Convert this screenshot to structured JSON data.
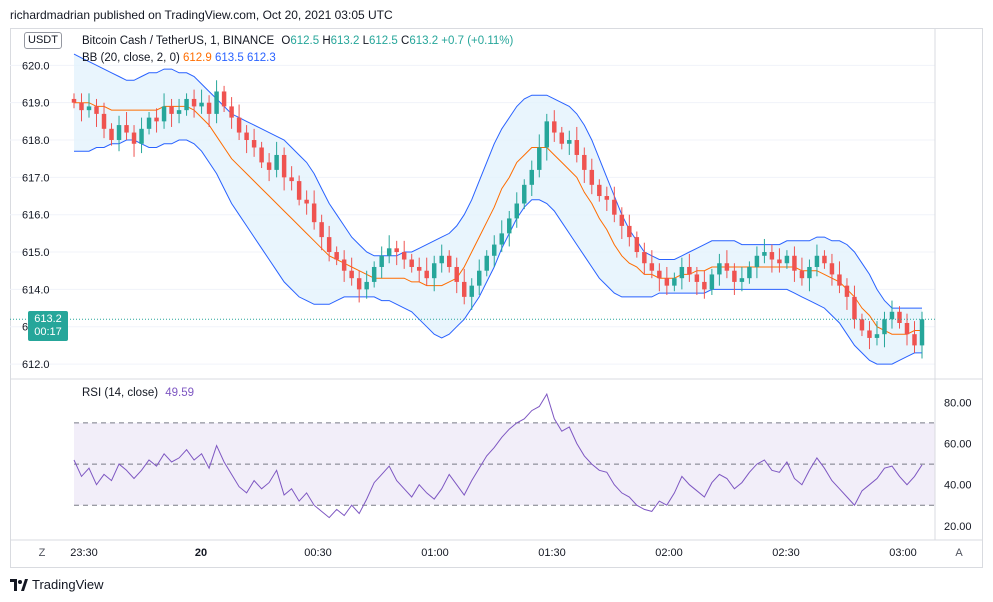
{
  "header": {
    "published_text": "richardmadrian published on TradingView.com, Oct 20, 2021 03:05 UTC"
  },
  "legend": {
    "symbol": "Bitcoin Cash / TetherUS, 1, BINANCE",
    "o_label": "O",
    "o_value": "612.5",
    "h_label": "H",
    "h_value": "613.2",
    "l_label": "L",
    "l_value": "612.5",
    "c_label": "C",
    "c_value": "613.2",
    "change": "+0.7 (+0.11%)",
    "bb_label": "BB (20, close, 2, 0)",
    "bb_basis": "612.9",
    "bb_upper": "613.5",
    "bb_lower": "612.3",
    "rsi_label": "RSI (14, close)",
    "rsi_value": "49.59"
  },
  "currency_pill": "USDT",
  "price_tag": {
    "price": "613.2",
    "countdown": "00:17"
  },
  "footer": {
    "brand": "TradingView",
    "timezone_button": "Z",
    "autoscale_button": "A"
  },
  "colors": {
    "up": "#26a69a",
    "down": "#ef5350",
    "bb_band": "#2962ff",
    "bb_basis": "#ff6d00",
    "bb_fill": "#e3f2fd",
    "rsi_line": "#7e57c2",
    "rsi_fill": "#ede7f6",
    "text_green": "#26a69a",
    "price_tag_bg": "#26a69a"
  },
  "chart_data": [
    {
      "type": "candlestick",
      "xlabel": "",
      "ylabel": "",
      "x_ticks": [
        "23:30",
        "20",
        "00:30",
        "01:00",
        "01:30",
        "02:00",
        "02:30",
        "03:00"
      ],
      "y_ticks": [
        612.0,
        613.0,
        614.0,
        615.0,
        616.0,
        617.0,
        618.0,
        619.0,
        620.0
      ],
      "ylim": [
        611.6,
        621.0
      ],
      "close_series": [
        619.0,
        618.8,
        618.9,
        618.7,
        618.3,
        618.0,
        618.4,
        618.2,
        617.9,
        618.3,
        618.6,
        618.5,
        618.9,
        618.7,
        618.8,
        619.1,
        618.9,
        619.0,
        618.7,
        619.3,
        618.9,
        618.6,
        618.2,
        618.0,
        617.8,
        617.4,
        617.2,
        617.6,
        617.0,
        616.9,
        616.4,
        616.3,
        615.8,
        615.4,
        615.0,
        614.8,
        614.5,
        614.3,
        614.0,
        614.2,
        614.6,
        614.9,
        615.1,
        615.0,
        614.8,
        614.6,
        614.5,
        614.3,
        614.7,
        614.9,
        614.6,
        614.2,
        613.8,
        614.1,
        614.5,
        614.9,
        615.2,
        615.5,
        615.9,
        616.3,
        616.8,
        617.2,
        617.8,
        618.5,
        618.2,
        617.9,
        618.0,
        617.6,
        617.2,
        616.8,
        616.5,
        616.4,
        616.0,
        615.7,
        615.4,
        615.0,
        614.7,
        614.5,
        614.3,
        614.1,
        614.3,
        614.6,
        614.4,
        614.2,
        614.0,
        614.4,
        614.7,
        614.5,
        614.2,
        614.3,
        614.6,
        614.9,
        615.0,
        614.8,
        614.7,
        614.9,
        614.5,
        614.3,
        614.6,
        614.9,
        614.7,
        614.4,
        614.1,
        613.8,
        613.2,
        612.9,
        612.7,
        612.8,
        613.2,
        613.4,
        613.1,
        612.8,
        612.5,
        613.2
      ],
      "bb_upper_series": [
        620.3,
        620.2,
        620.1,
        620.0,
        619.9,
        619.8,
        619.7,
        619.6,
        619.6,
        619.7,
        619.8,
        619.8,
        619.9,
        619.9,
        619.8,
        619.8,
        619.7,
        619.5,
        619.3,
        619.1,
        618.9,
        618.7,
        618.6,
        618.5,
        618.4,
        618.3,
        618.2,
        618.1,
        618.0,
        617.8,
        617.6,
        617.4,
        617.1,
        616.7,
        616.3,
        616.0,
        615.7,
        615.4,
        615.2,
        615.0,
        614.9,
        614.9,
        614.9,
        614.9,
        615.0,
        615.0,
        615.1,
        615.2,
        615.3,
        615.4,
        615.5,
        615.7,
        616.0,
        616.4,
        616.9,
        617.4,
        617.9,
        618.3,
        618.6,
        618.9,
        619.1,
        619.2,
        619.2,
        619.2,
        619.1,
        619.0,
        618.9,
        618.7,
        618.4,
        618.0,
        617.5,
        617.0,
        616.5,
        616.0,
        615.6,
        615.3,
        615.0,
        614.9,
        614.8,
        614.8,
        614.8,
        614.9,
        615.0,
        615.1,
        615.2,
        615.3,
        615.3,
        615.3,
        615.3,
        615.2,
        615.2,
        615.2,
        615.2,
        615.2,
        615.2,
        615.3,
        615.3,
        615.3,
        615.3,
        615.4,
        615.4,
        615.3,
        615.3,
        615.2,
        615.0,
        614.7,
        614.4,
        614.0,
        613.7,
        613.5,
        613.5,
        613.5,
        613.5,
        613.5
      ],
      "bb_lower_series": [
        617.7,
        617.7,
        617.7,
        617.8,
        617.8,
        617.9,
        617.9,
        618.0,
        618.0,
        617.9,
        617.8,
        617.8,
        617.9,
        617.9,
        618.0,
        618.0,
        617.9,
        617.7,
        617.4,
        617.1,
        616.7,
        616.3,
        616.0,
        615.7,
        615.4,
        615.1,
        614.8,
        614.5,
        614.2,
        614.0,
        613.8,
        613.7,
        613.6,
        613.6,
        613.6,
        613.7,
        613.8,
        613.8,
        613.8,
        613.8,
        613.8,
        613.7,
        613.7,
        613.6,
        613.5,
        613.4,
        613.2,
        613.0,
        612.8,
        612.7,
        612.8,
        613.0,
        613.2,
        613.5,
        613.8,
        614.2,
        614.6,
        615.1,
        615.5,
        615.9,
        616.2,
        616.4,
        616.4,
        616.3,
        616.1,
        615.8,
        615.5,
        615.2,
        614.9,
        614.6,
        614.3,
        614.1,
        613.9,
        613.8,
        613.8,
        613.8,
        613.8,
        613.8,
        613.9,
        613.9,
        613.9,
        613.9,
        613.9,
        613.9,
        613.9,
        614.0,
        614.0,
        614.0,
        614.0,
        614.0,
        614.0,
        614.0,
        614.0,
        614.0,
        614.0,
        614.0,
        613.9,
        613.8,
        613.7,
        613.6,
        613.5,
        613.3,
        613.1,
        612.8,
        612.5,
        612.3,
        612.1,
        612.0,
        612.0,
        612.0,
        612.1,
        612.2,
        612.3,
        612.3
      ],
      "bb_basis_series": [
        619.0,
        619.0,
        619.0,
        618.9,
        618.9,
        618.8,
        618.8,
        618.8,
        618.8,
        618.8,
        618.8,
        618.8,
        618.9,
        618.9,
        618.9,
        618.9,
        618.8,
        618.6,
        618.4,
        618.1,
        617.8,
        617.5,
        617.3,
        617.1,
        616.9,
        616.7,
        616.5,
        616.3,
        616.1,
        615.9,
        615.7,
        615.5,
        615.3,
        615.1,
        614.9,
        614.8,
        614.7,
        614.6,
        614.5,
        614.4,
        614.3,
        614.3,
        614.3,
        614.3,
        614.3,
        614.2,
        614.2,
        614.1,
        614.1,
        614.1,
        614.2,
        614.3,
        614.6,
        615.0,
        615.4,
        615.8,
        616.2,
        616.7,
        617.0,
        617.4,
        617.6,
        617.8,
        617.8,
        617.8,
        617.6,
        617.4,
        617.2,
        617.0,
        616.6,
        616.3,
        615.9,
        615.6,
        615.2,
        614.9,
        614.7,
        614.6,
        614.4,
        614.4,
        614.3,
        614.3,
        614.3,
        614.4,
        614.4,
        614.5,
        614.5,
        614.6,
        614.6,
        614.6,
        614.6,
        614.6,
        614.6,
        614.6,
        614.6,
        614.6,
        614.6,
        614.6,
        614.6,
        614.5,
        614.5,
        614.5,
        614.4,
        614.3,
        614.2,
        614.0,
        613.8,
        613.5,
        613.3,
        613.0,
        612.9,
        612.8,
        612.8,
        612.8,
        612.9,
        612.9
      ],
      "last_price": 613.2
    },
    {
      "type": "line",
      "name": "RSI (14, close)",
      "y_ticks": [
        20.0,
        40.0,
        60.0,
        80.0
      ],
      "ylim": [
        17,
        86
      ],
      "upper_band": 70,
      "middle_band": 50,
      "lower_band": 30,
      "values": [
        52,
        44,
        48,
        40,
        45,
        42,
        50,
        47,
        43,
        47,
        52,
        49,
        55,
        51,
        53,
        57,
        52,
        55,
        48,
        59,
        51,
        45,
        39,
        36,
        42,
        38,
        41,
        47,
        35,
        38,
        32,
        36,
        30,
        27,
        24,
        28,
        25,
        30,
        26,
        33,
        41,
        45,
        49,
        42,
        38,
        34,
        40,
        36,
        33,
        38,
        45,
        40,
        35,
        42,
        48,
        54,
        58,
        63,
        67,
        70,
        72,
        76,
        78,
        84,
        72,
        66,
        68,
        60,
        54,
        50,
        47,
        46,
        40,
        36,
        34,
        30,
        28,
        27,
        32,
        30,
        36,
        44,
        40,
        37,
        34,
        41,
        45,
        43,
        38,
        41,
        46,
        50,
        52,
        47,
        46,
        51,
        43,
        40,
        47,
        53,
        48,
        42,
        38,
        34,
        30,
        37,
        40,
        43,
        48,
        49,
        44,
        40,
        44,
        49.59
      ],
      "current": 49.59
    }
  ]
}
